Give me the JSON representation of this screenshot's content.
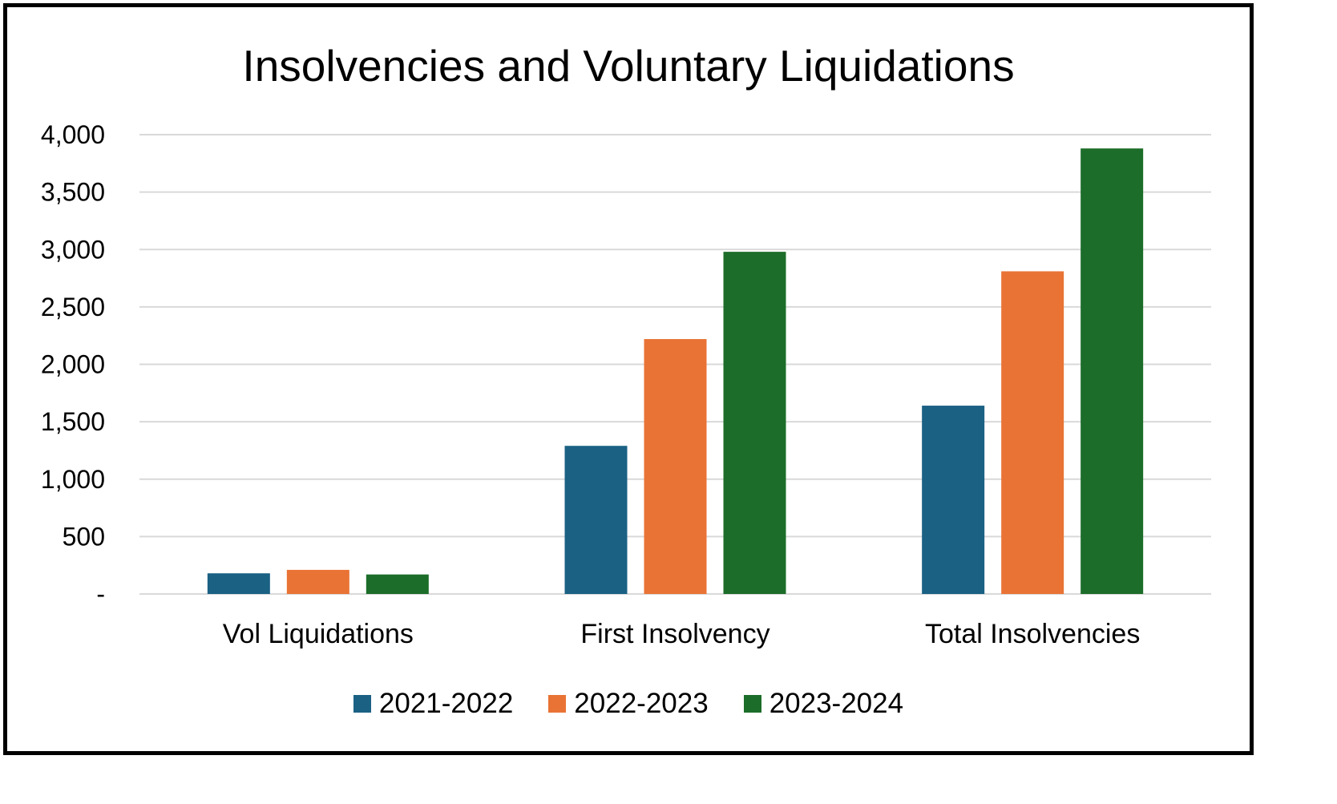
{
  "chart_data": {
    "type": "bar",
    "title": "Insolvencies and Voluntary Liquidations",
    "xlabel": "",
    "ylabel": "",
    "categories": [
      "Vol Liquidations",
      "First Insolvency",
      "Total Insolvencies"
    ],
    "series": [
      {
        "name": "2021-2022",
        "color": "#1a6184",
        "values": [
          180,
          1290,
          1640
        ]
      },
      {
        "name": "2022-2023",
        "color": "#e97335",
        "values": [
          210,
          2220,
          2810
        ]
      },
      {
        "name": "2023-2024",
        "color": "#1c6d29",
        "values": [
          170,
          2980,
          3880
        ]
      }
    ],
    "ylim": [
      0,
      4000
    ],
    "yticks": [
      0,
      500,
      1000,
      1500,
      2000,
      2500,
      3000,
      3500,
      4000
    ],
    "ytick_labels": [
      "-",
      "500",
      "1,000",
      "1,500",
      "2,000",
      "2,500",
      "3,000",
      "3,500",
      "4,000"
    ],
    "grid": true,
    "legend_position": "bottom"
  }
}
